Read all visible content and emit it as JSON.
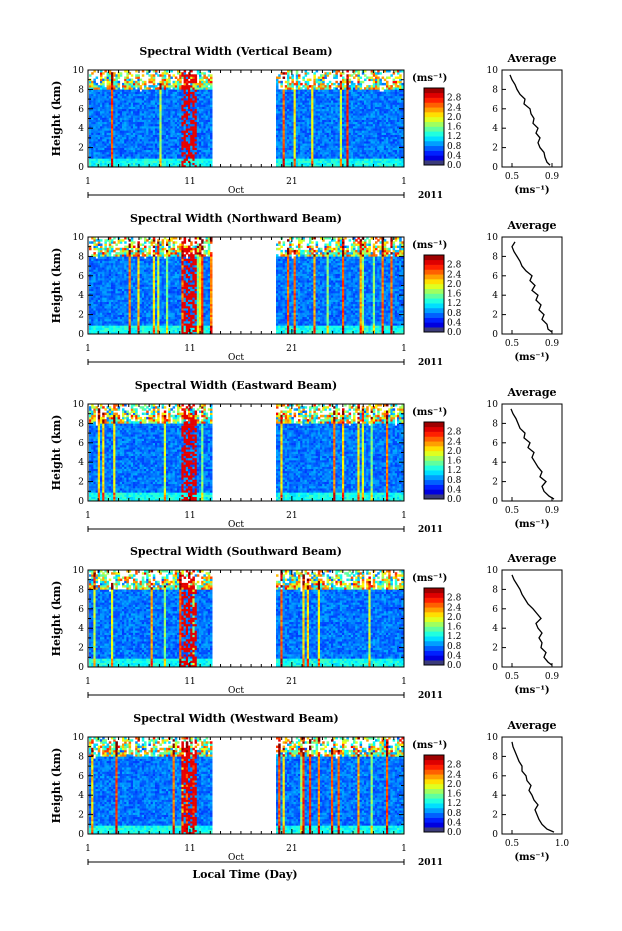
{
  "xlabel": "Local Time (Day)",
  "month_label": "Oct",
  "year_label": "2011",
  "ylabel": "Height (km)",
  "avg_title": "Average",
  "cbar_unit": "(ms⁻¹)",
  "avg_xlabel": "(ms⁻¹)",
  "chart_data": [
    {
      "type": "heatmap",
      "title": "Spectral Width (Vertical Beam)",
      "x_ticks": [
        "1",
        "11",
        "21",
        "1"
      ],
      "y_ticks": [
        "0",
        "2",
        "4",
        "6",
        "8",
        "10"
      ],
      "ylim": [
        0,
        10
      ],
      "data_gap_days": [
        13,
        19
      ],
      "colorbar_ticks": [
        "0.0",
        "0.4",
        "0.8",
        "1.2",
        "1.6",
        "2.0",
        "2.4",
        "2.8"
      ],
      "colorbar_range": [
        0,
        3.2
      ],
      "average": {
        "x_ticks": [
          "0.5",
          "0.9"
        ],
        "xlim": [
          0.4,
          1.0
        ],
        "height_km": [
          0.2,
          0.5,
          1,
          1.5,
          2,
          2.5,
          3,
          3.5,
          4,
          4.5,
          5,
          5.5,
          6,
          6.5,
          7,
          7.5,
          8,
          8.5,
          9,
          9.5
        ],
        "values": [
          0.88,
          0.85,
          0.83,
          0.82,
          0.78,
          0.76,
          0.78,
          0.74,
          0.76,
          0.71,
          0.72,
          0.69,
          0.68,
          0.62,
          0.63,
          0.58,
          0.55,
          0.53,
          0.5,
          0.48
        ]
      }
    },
    {
      "type": "heatmap",
      "title": "Spectral Width (Northward Beam)",
      "x_ticks": [
        "1",
        "11",
        "21",
        "1"
      ],
      "y_ticks": [
        "0",
        "2",
        "4",
        "6",
        "8",
        "10"
      ],
      "ylim": [
        0,
        10
      ],
      "data_gap_days": [
        13,
        19
      ],
      "colorbar_ticks": [
        "0.0",
        "0.4",
        "0.8",
        "1.2",
        "1.6",
        "2.0",
        "2.4",
        "2.8"
      ],
      "colorbar_range": [
        0,
        3.2
      ],
      "average": {
        "x_ticks": [
          "0.5",
          "0.9"
        ],
        "xlim": [
          0.4,
          1.0
        ],
        "height_km": [
          0.2,
          0.5,
          1,
          1.5,
          2,
          2.5,
          3,
          3.5,
          4,
          4.5,
          5,
          5.5,
          6,
          6.5,
          7,
          7.5,
          8,
          8.5,
          9,
          9.5
        ],
        "values": [
          0.9,
          0.86,
          0.85,
          0.8,
          0.82,
          0.77,
          0.79,
          0.74,
          0.76,
          0.7,
          0.73,
          0.68,
          0.7,
          0.64,
          0.6,
          0.58,
          0.55,
          0.52,
          0.5,
          0.53
        ]
      }
    },
    {
      "type": "heatmap",
      "title": "Spectral Width (Eastward Beam)",
      "x_ticks": [
        "1",
        "11",
        "21",
        "1"
      ],
      "y_ticks": [
        "0",
        "2",
        "4",
        "6",
        "8",
        "10"
      ],
      "ylim": [
        0,
        10
      ],
      "data_gap_days": [
        13,
        19
      ],
      "colorbar_ticks": [
        "0.0",
        "0.4",
        "0.8",
        "1.2",
        "1.6",
        "2.0",
        "2.4",
        "2.8"
      ],
      "colorbar_range": [
        0,
        3.2
      ],
      "average": {
        "x_ticks": [
          "0.5",
          "0.9"
        ],
        "xlim": [
          0.4,
          1.0
        ],
        "height_km": [
          0.2,
          0.5,
          1,
          1.5,
          2,
          2.5,
          3,
          3.5,
          4,
          4.5,
          5,
          5.5,
          6,
          6.5,
          7,
          7.5,
          8,
          8.5,
          9,
          9.5
        ],
        "values": [
          0.92,
          0.87,
          0.82,
          0.8,
          0.84,
          0.78,
          0.8,
          0.76,
          0.73,
          0.7,
          0.72,
          0.66,
          0.68,
          0.62,
          0.63,
          0.58,
          0.56,
          0.54,
          0.51,
          0.49
        ]
      }
    },
    {
      "type": "heatmap",
      "title": "Spectral Width (Southward Beam)",
      "x_ticks": [
        "1",
        "11",
        "21",
        "1"
      ],
      "y_ticks": [
        "0",
        "2",
        "4",
        "6",
        "8",
        "10"
      ],
      "ylim": [
        0,
        10
      ],
      "data_gap_days": [
        13,
        19
      ],
      "colorbar_ticks": [
        "0.0",
        "0.4",
        "0.8",
        "1.2",
        "1.6",
        "2.0",
        "2.4",
        "2.8"
      ],
      "colorbar_range": [
        0,
        3.2
      ],
      "average": {
        "x_ticks": [
          "0.5",
          "0.9"
        ],
        "xlim": [
          0.4,
          1.0
        ],
        "height_km": [
          0.2,
          0.5,
          1,
          1.5,
          2,
          2.5,
          3,
          3.5,
          4,
          4.5,
          5,
          5.5,
          6,
          6.5,
          7,
          7.5,
          8,
          8.5,
          9,
          9.5
        ],
        "values": [
          0.9,
          0.86,
          0.82,
          0.84,
          0.79,
          0.8,
          0.77,
          0.8,
          0.76,
          0.74,
          0.79,
          0.75,
          0.71,
          0.66,
          0.63,
          0.6,
          0.58,
          0.55,
          0.52,
          0.5
        ]
      }
    },
    {
      "type": "heatmap",
      "title": "Spectral Width (Westward Beam)",
      "x_ticks": [
        "1",
        "11",
        "21",
        "1"
      ],
      "y_ticks": [
        "0",
        "2",
        "4",
        "6",
        "8",
        "10"
      ],
      "ylim": [
        0,
        10
      ],
      "data_gap_days": [
        13,
        19
      ],
      "colorbar_ticks": [
        "0.0",
        "0.4",
        "0.8",
        "1.2",
        "1.6",
        "2.0",
        "2.4",
        "2.8"
      ],
      "colorbar_range": [
        0,
        3.2
      ],
      "average": {
        "x_ticks": [
          "0.5",
          "1.0"
        ],
        "xlim": [
          0.4,
          1.0
        ],
        "height_km": [
          0.2,
          0.5,
          1,
          1.5,
          2,
          2.5,
          3,
          3.5,
          4,
          4.5,
          5,
          5.5,
          6,
          6.5,
          7,
          7.5,
          8,
          8.5,
          9,
          9.5
        ],
        "values": [
          0.92,
          0.85,
          0.8,
          0.77,
          0.75,
          0.73,
          0.76,
          0.72,
          0.7,
          0.67,
          0.69,
          0.65,
          0.64,
          0.6,
          0.6,
          0.57,
          0.55,
          0.53,
          0.51,
          0.5
        ]
      }
    }
  ]
}
